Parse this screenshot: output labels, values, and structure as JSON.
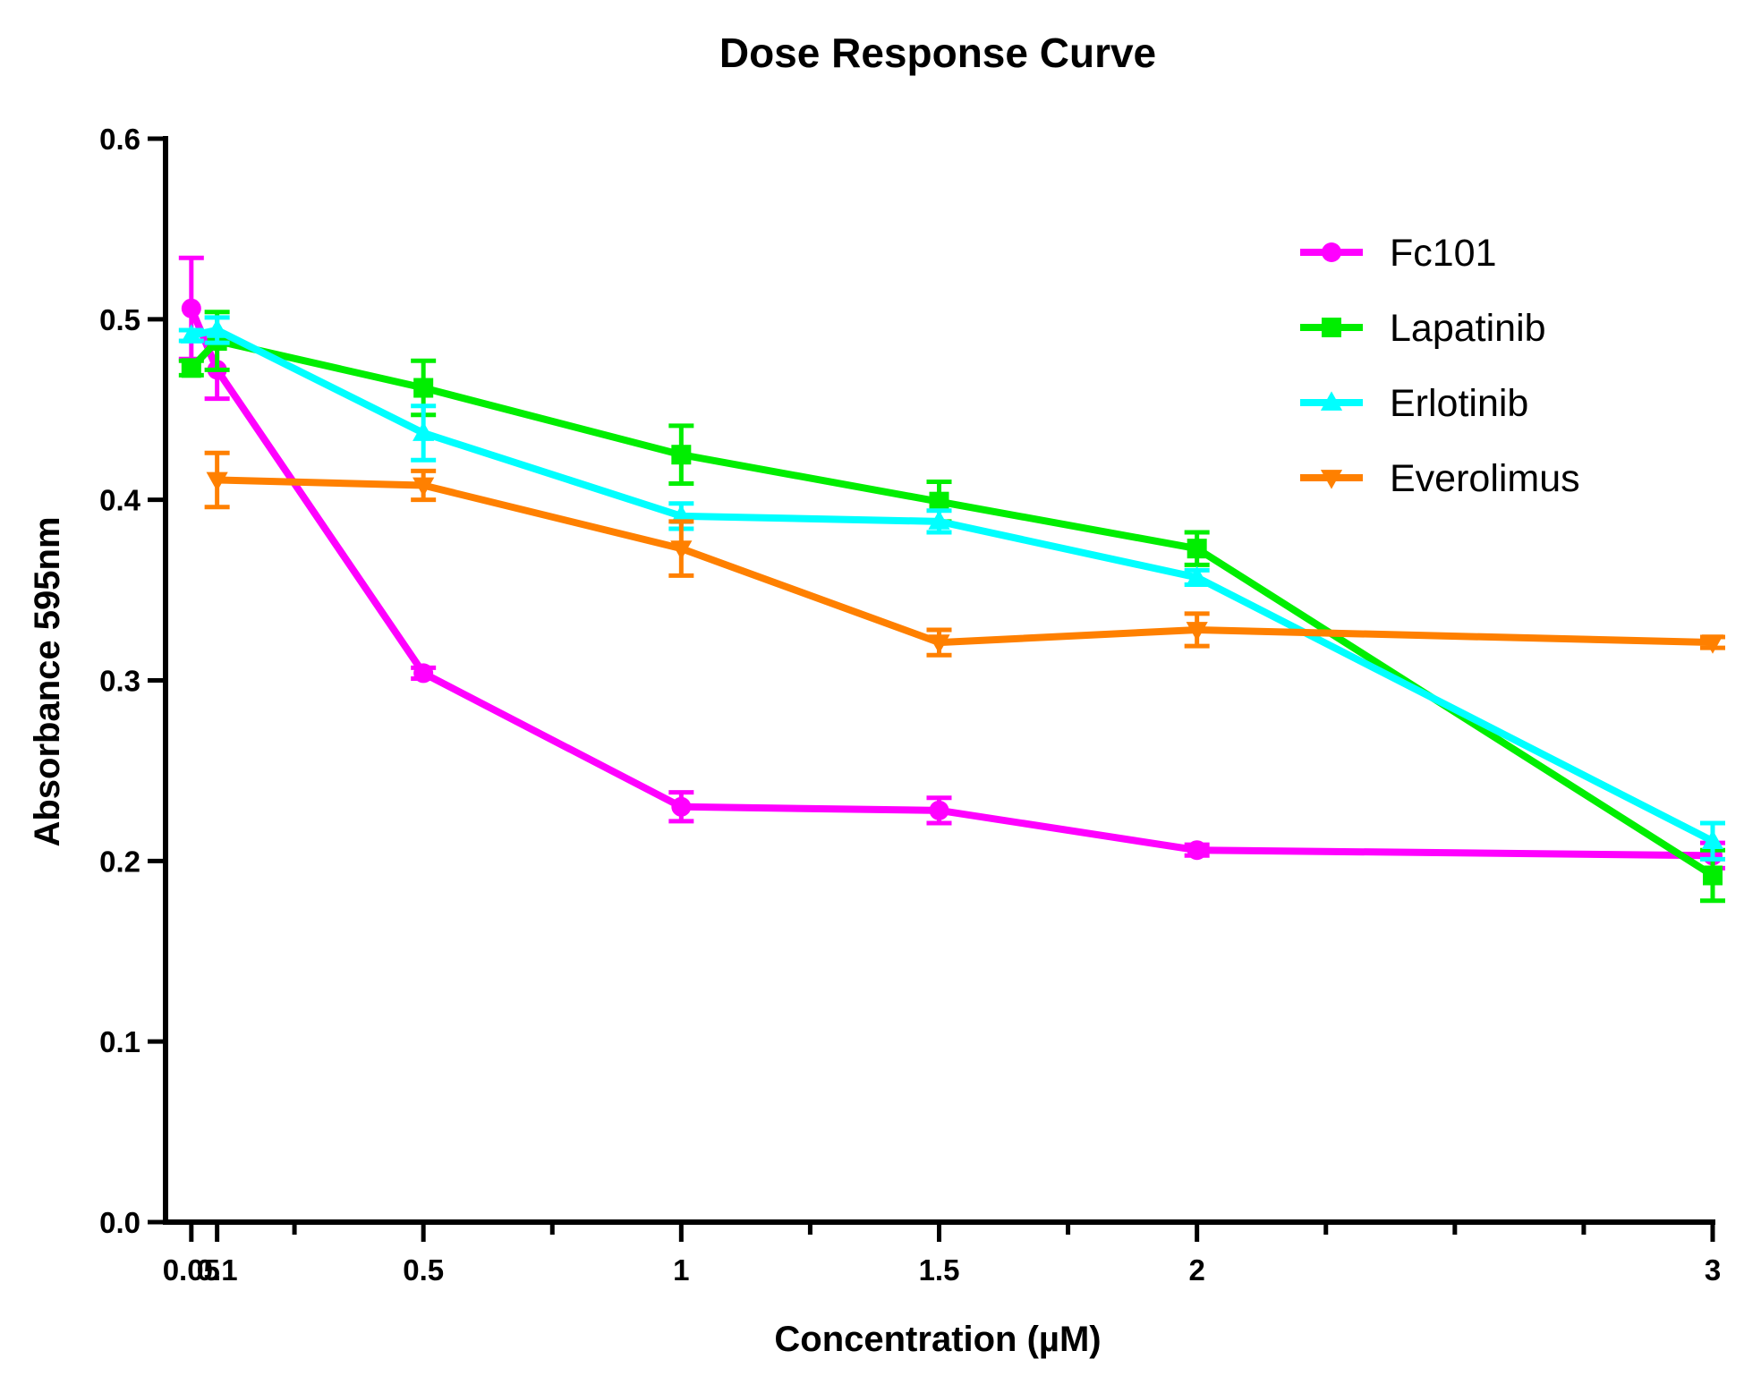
{
  "chart_data": {
    "type": "line",
    "title": "Dose Response Curve",
    "xlabel": "Concentration (µM)",
    "ylabel": "Absorbance 595nm",
    "xlim": [
      0,
      3
    ],
    "ylim": [
      0,
      0.6
    ],
    "x_ticks": [
      0.05,
      0.1,
      0.5,
      1,
      1.5,
      2,
      3
    ],
    "x_tick_labels": [
      "0.05",
      "0.1",
      "0.5",
      "1",
      "1.5",
      "2",
      "3"
    ],
    "x_minor_ticks": [
      0.25,
      0.75,
      1.25,
      1.75,
      2.25,
      2.5,
      2.75
    ],
    "y_ticks": [
      0.0,
      0.1,
      0.2,
      0.3,
      0.4,
      0.5,
      0.6
    ],
    "y_tick_labels": [
      "0.0",
      "0.1",
      "0.2",
      "0.3",
      "0.4",
      "0.5",
      "0.6"
    ],
    "grid": false,
    "legend_position": "top-right",
    "series": [
      {
        "name": "Fc101",
        "color": "#ff00ff",
        "marker": "circle",
        "x": [
          0.05,
          0.1,
          0.5,
          1,
          1.5,
          2,
          3
        ],
        "values": [
          0.506,
          0.472,
          0.304,
          0.23,
          0.228,
          0.206,
          0.203
        ],
        "errors": [
          0.028,
          0.016,
          0.003,
          0.008,
          0.007,
          0.003,
          0.007
        ]
      },
      {
        "name": "Lapatinib",
        "color": "#00ee00",
        "marker": "square",
        "x": [
          0.05,
          0.1,
          0.5,
          1,
          1.5,
          2,
          3
        ],
        "values": [
          0.473,
          0.488,
          0.462,
          0.425,
          0.399,
          0.373,
          0.192
        ],
        "errors": [
          0.004,
          0.016,
          0.015,
          0.016,
          0.011,
          0.009,
          0.014
        ]
      },
      {
        "name": "Erlotinib",
        "color": "#00ffff",
        "marker": "triangle-up",
        "x": [
          0.05,
          0.1,
          0.5,
          1,
          1.5,
          2,
          3
        ],
        "values": [
          0.491,
          0.494,
          0.437,
          0.391,
          0.388,
          0.357,
          0.211
        ],
        "errors": [
          0.003,
          0.007,
          0.015,
          0.007,
          0.006,
          0.004,
          0.01
        ]
      },
      {
        "name": "Everolimus",
        "color": "#ff8000",
        "marker": "triangle-down",
        "x": [
          0.1,
          0.5,
          1,
          1.5,
          2,
          3
        ],
        "values": [
          0.411,
          0.408,
          0.373,
          0.321,
          0.328,
          0.321
        ],
        "errors": [
          0.015,
          0.008,
          0.015,
          0.007,
          0.009,
          0.003
        ]
      }
    ]
  }
}
